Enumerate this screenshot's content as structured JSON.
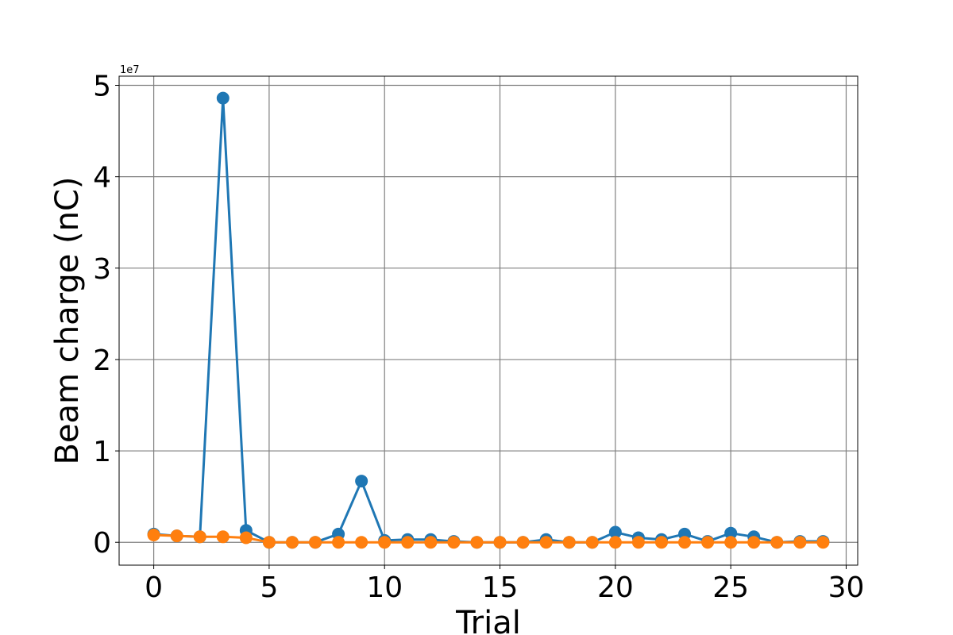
{
  "chart_data": {
    "type": "line",
    "xlabel": "Trial",
    "ylabel": "Beam charge (nC)",
    "y_offset_label": "1e7",
    "xlim": [
      -1.5,
      30.5
    ],
    "ylim": [
      -2500000,
      51000000
    ],
    "xticks": [
      0,
      5,
      10,
      15,
      20,
      25,
      30
    ],
    "yticks": [
      0,
      10000000,
      20000000,
      30000000,
      40000000,
      50000000
    ],
    "ytick_labels": [
      "0",
      "1",
      "2",
      "3",
      "4",
      "5"
    ],
    "grid": true,
    "markers": true,
    "series": [
      {
        "color": "#1f77b4",
        "x": [
          0,
          1,
          2,
          3,
          4,
          5,
          6,
          7,
          8,
          9,
          10,
          11,
          12,
          13,
          14,
          15,
          16,
          17,
          18,
          19,
          20,
          21,
          22,
          23,
          24,
          25,
          26,
          27,
          28,
          29
        ],
        "y": [
          900000,
          700000,
          600000,
          48600000,
          1300000,
          0,
          0,
          0,
          900000,
          6700000,
          200000,
          300000,
          300000,
          100000,
          0,
          0,
          0,
          300000,
          0,
          0,
          1100000,
          500000,
          300000,
          900000,
          100000,
          1000000,
          600000,
          0,
          100000,
          100000
        ]
      },
      {
        "color": "#ff7f0e",
        "x": [
          0,
          1,
          2,
          3,
          4,
          5,
          6,
          7,
          8,
          9,
          10,
          11,
          12,
          13,
          14,
          15,
          16,
          17,
          18,
          19,
          20,
          21,
          22,
          23,
          24,
          25,
          26,
          27,
          28,
          29
        ],
        "y": [
          800000,
          700000,
          600000,
          600000,
          500000,
          0,
          0,
          0,
          0,
          0,
          0,
          0,
          0,
          0,
          0,
          0,
          0,
          0,
          0,
          0,
          0,
          0,
          0,
          0,
          0,
          0,
          0,
          0,
          0,
          0
        ]
      }
    ]
  }
}
